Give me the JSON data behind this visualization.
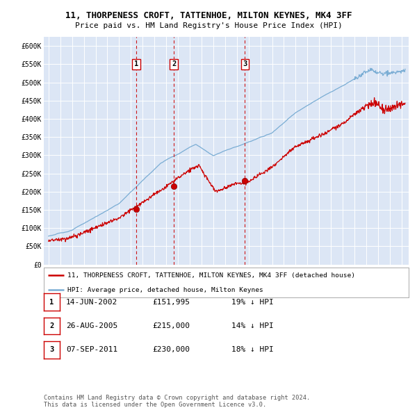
{
  "title1": "11, THORPENESS CROFT, TATTENHOE, MILTON KEYNES, MK4 3FF",
  "title2": "Price paid vs. HM Land Registry's House Price Index (HPI)",
  "ylim": [
    0,
    625000
  ],
  "yticks": [
    0,
    50000,
    100000,
    150000,
    200000,
    250000,
    300000,
    350000,
    400000,
    450000,
    500000,
    550000,
    600000
  ],
  "ytick_labels": [
    "£0",
    "£50K",
    "£100K",
    "£150K",
    "£200K",
    "£250K",
    "£300K",
    "£350K",
    "£400K",
    "£450K",
    "£500K",
    "£550K",
    "£600K"
  ],
  "plot_bg_color": "#dce6f5",
  "hpi_color": "#7aadd4",
  "price_color": "#cc0000",
  "dashed_line_color": "#cc0000",
  "transactions": [
    {
      "date": 2002.45,
      "price": 151995,
      "label": "1"
    },
    {
      "date": 2005.65,
      "price": 215000,
      "label": "2"
    },
    {
      "date": 2011.68,
      "price": 230000,
      "label": "3"
    }
  ],
  "legend_price_label": "11, THORPENESS CROFT, TATTENHOE, MILTON KEYNES, MK4 3FF (detached house)",
  "legend_hpi_label": "HPI: Average price, detached house, Milton Keynes",
  "table_rows": [
    {
      "num": "1",
      "date": "14-JUN-2002",
      "price": "£151,995",
      "pct": "19% ↓ HPI"
    },
    {
      "num": "2",
      "date": "26-AUG-2005",
      "price": "£215,000",
      "pct": "14% ↓ HPI"
    },
    {
      "num": "3",
      "date": "07-SEP-2011",
      "price": "£230,000",
      "pct": "18% ↓ HPI"
    }
  ],
  "footer": "Contains HM Land Registry data © Crown copyright and database right 2024.\nThis data is licensed under the Open Government Licence v3.0.",
  "title_fontsize": 9.5,
  "subtitle_fontsize": 8.5
}
